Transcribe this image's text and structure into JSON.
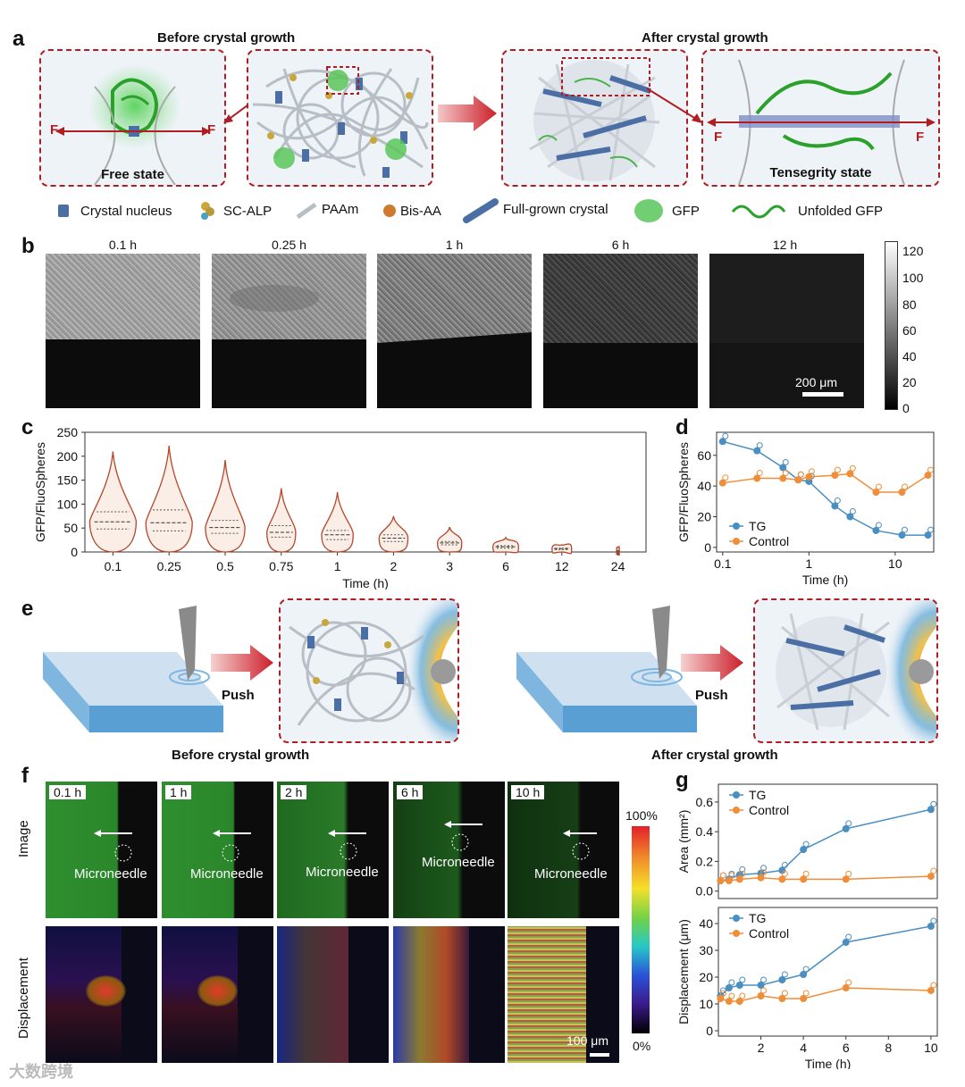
{
  "panel_a": {
    "letter": "a",
    "before_title": "Before crystal growth",
    "after_title": "After crystal growth",
    "free_state": "Free state",
    "tensegrity_state": "Tensegrity state",
    "force": "F",
    "legend": [
      "Crystal nucleus",
      "SC-ALP",
      "PAAm",
      "Bis-AA",
      "Full-grown crystal",
      "GFP",
      "Unfolded GFP"
    ]
  },
  "panel_b": {
    "letter": "b",
    "times": [
      "0.1 h",
      "0.25 h",
      "1 h",
      "6 h",
      "12 h"
    ],
    "scalebar": "200 μm",
    "colorbar_ticks": [
      "120",
      "100",
      "80",
      "60",
      "40",
      "20",
      "0"
    ]
  },
  "panel_e": {
    "letter": "e",
    "push": "Push",
    "before_caption": "Before crystal growth",
    "after_caption": "After crystal growth"
  },
  "panel_f": {
    "letter": "f",
    "times": [
      "0.1 h",
      "1 h",
      "2 h",
      "6 h",
      "10 h"
    ],
    "micro_label": "Microneedle",
    "row_labels": [
      "Image",
      "Displacement"
    ],
    "scalebar": "100 μm",
    "colorbar_top": "100%",
    "colorbar_bottom": "0%"
  },
  "panel_g": {
    "letter": "g"
  },
  "watermark": "大数跨境",
  "chart_data": [
    {
      "id": "c",
      "type": "violin",
      "letter": "c",
      "xlabel": "Time (h)",
      "ylabel": "GFP/FluoSpheres",
      "ylim": [
        0,
        250
      ],
      "yticks": [
        0,
        50,
        100,
        150,
        200,
        250
      ],
      "categories": [
        "0.1",
        "0.25",
        "0.5",
        "0.75",
        "1",
        "2",
        "3",
        "6",
        "12",
        "24"
      ],
      "max": [
        210,
        222,
        192,
        133,
        125,
        75,
        52,
        30,
        15,
        10
      ],
      "median": [
        63,
        61,
        51,
        41,
        36,
        29,
        19,
        11,
        7,
        2
      ],
      "q1": [
        48,
        44,
        39,
        31,
        26,
        22,
        15,
        8,
        5,
        1
      ],
      "q3": [
        84,
        88,
        66,
        55,
        45,
        36,
        22,
        13,
        8,
        3
      ],
      "width": [
        1,
        1,
        0.85,
        0.62,
        0.68,
        0.62,
        0.52,
        0.55,
        0.42,
        0.06
      ]
    },
    {
      "id": "d",
      "type": "line",
      "letter": "d",
      "xscale": "log",
      "xlabel": "Time (h)",
      "ylabel": "GFP/FluoSpheres",
      "xticks": [
        "0.1",
        "1",
        "10"
      ],
      "yticks": [
        0,
        20,
        40,
        60
      ],
      "ylim": [
        -3,
        75
      ],
      "series": [
        {
          "name": "TG",
          "color": "#4a8fc1",
          "x": [
            0.1,
            0.25,
            0.5,
            0.75,
            1,
            2,
            3,
            6,
            12,
            24
          ],
          "y": [
            69,
            63,
            52,
            44,
            43,
            27,
            20,
            11,
            8,
            8
          ]
        },
        {
          "name": "Control",
          "color": "#ef8e3a",
          "x": [
            0.1,
            0.25,
            0.5,
            0.75,
            1,
            2,
            3,
            6,
            12,
            24
          ],
          "y": [
            42,
            45,
            45,
            44,
            46,
            47,
            48,
            36,
            36,
            47
          ]
        }
      ]
    },
    {
      "id": "g_area",
      "type": "line",
      "xlabel": "",
      "ylabel": "Area (mm²)",
      "yticks": [
        "0.0",
        "0.2",
        "0.4",
        "0.6"
      ],
      "ylim": [
        -0.05,
        0.72
      ],
      "xlim": [
        0,
        10.3
      ],
      "series": [
        {
          "name": "TG",
          "color": "#4a8fc1",
          "x": [
            0.1,
            0.5,
            1,
            2,
            3,
            4,
            6,
            10
          ],
          "y": [
            0.07,
            0.08,
            0.11,
            0.12,
            0.14,
            0.28,
            0.42,
            0.55
          ]
        },
        {
          "name": "Control",
          "color": "#ef8e3a",
          "x": [
            0.1,
            0.5,
            1,
            2,
            3,
            4,
            6,
            10
          ],
          "y": [
            0.07,
            0.07,
            0.08,
            0.09,
            0.08,
            0.08,
            0.08,
            0.1
          ]
        }
      ]
    },
    {
      "id": "g_disp",
      "type": "line",
      "xlabel": "Time (h)",
      "ylabel": "Displacement (μm)",
      "xticks": [
        2,
        4,
        6,
        8,
        10
      ],
      "yticks": [
        0,
        10,
        20,
        30,
        40
      ],
      "ylim": [
        -2,
        46
      ],
      "xlim": [
        0,
        10.3
      ],
      "series": [
        {
          "name": "TG",
          "color": "#4a8fc1",
          "x": [
            0.1,
            0.5,
            1,
            2,
            3,
            4,
            6,
            10
          ],
          "y": [
            13,
            16,
            17,
            17,
            19,
            21,
            33,
            39
          ]
        },
        {
          "name": "Control",
          "color": "#ef8e3a",
          "x": [
            0.1,
            0.5,
            1,
            2,
            3,
            4,
            6,
            10
          ],
          "y": [
            12,
            11,
            11,
            13,
            12,
            12,
            16,
            15
          ]
        }
      ]
    }
  ]
}
